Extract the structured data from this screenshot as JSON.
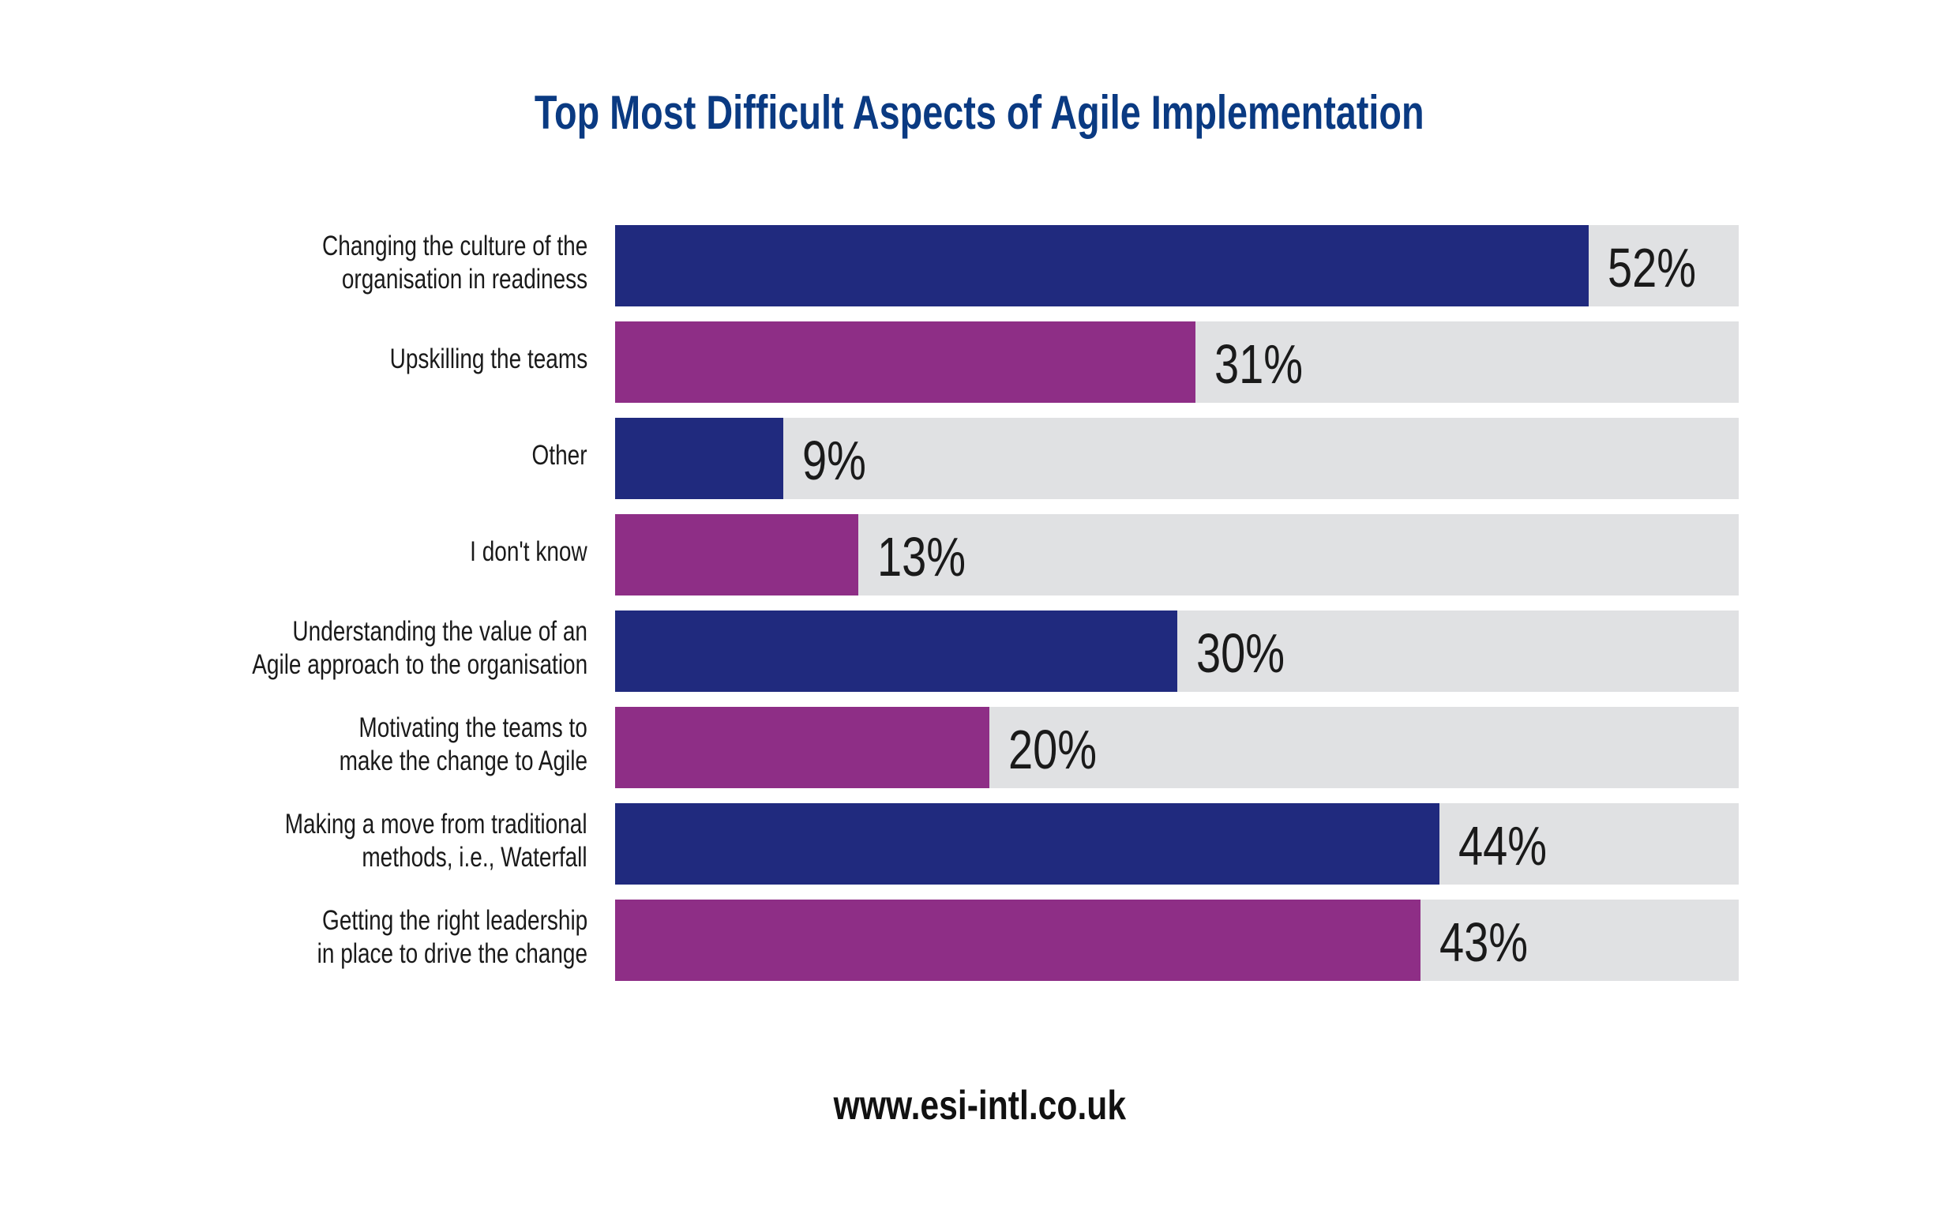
{
  "chart_data": {
    "type": "bar",
    "orientation": "horizontal",
    "title": "Top Most Difficult Aspects of Agile Implementation",
    "categories": [
      [
        "Changing the culture of the",
        "organisation in readiness"
      ],
      [
        "Upskilling the teams"
      ],
      [
        "Other"
      ],
      [
        "I don't know"
      ],
      [
        "Understanding the value of an",
        "Agile approach to the organisation"
      ],
      [
        "Motivating the teams to",
        "make the change to Agile"
      ],
      [
        "Making a move from traditional",
        "methods, i.e., Waterfall"
      ],
      [
        "Getting the right leadership",
        "in place to drive the change"
      ]
    ],
    "values": [
      52,
      31,
      9,
      13,
      30,
      20,
      44,
      43
    ],
    "value_labels": [
      "52%",
      "31%",
      "9%",
      "13%",
      "30%",
      "20%",
      "44%",
      "43%"
    ],
    "xlim": [
      0,
      60
    ],
    "unit": "%",
    "colors": [
      "#202a7e",
      "#8e2e86"
    ],
    "track_color": "#e0e1e3",
    "grid": false
  },
  "footer": {
    "url": "www.esi-intl.co.uk"
  }
}
